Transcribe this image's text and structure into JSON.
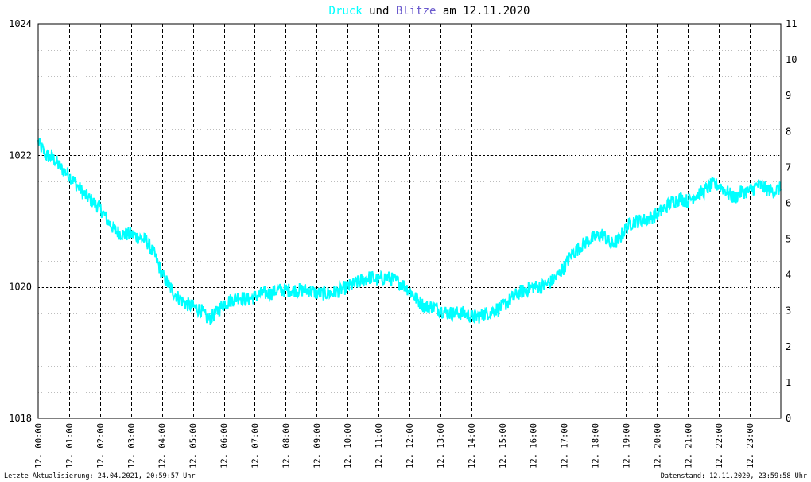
{
  "title": {
    "druck": "Druck",
    "und": "und",
    "blitze": "Blitze",
    "am_date": "am 12.11.2020"
  },
  "footer": {
    "left": "Letzte Aktualisierung: 24.04.2021, 20:59:57 Uhr",
    "right": "Datenstand: 12.11.2020, 23:59:58 Uhr"
  },
  "colors": {
    "druck": "#00ffff",
    "blitze": "#6a5acd",
    "text": "#000000",
    "grid": "#000000"
  },
  "chart_data": {
    "type": "line",
    "x_tick_labels": [
      "12. 00:00",
      "12. 01:00",
      "12. 02:00",
      "12. 03:00",
      "12. 04:00",
      "12. 05:00",
      "12. 06:00",
      "12. 07:00",
      "12. 08:00",
      "12. 09:00",
      "12. 10:00",
      "12. 11:00",
      "12. 12:00",
      "12. 13:00",
      "12. 14:00",
      "12. 15:00",
      "12. 16:00",
      "12. 17:00",
      "12. 18:00",
      "12. 19:00",
      "12. 20:00",
      "12. 21:00",
      "12. 22:00",
      "12. 23:00"
    ],
    "y_left": {
      "min": 1018,
      "max": 1024,
      "major_ticks": [
        1018,
        1020,
        1022,
        1024
      ],
      "minor_step": 0.4
    },
    "y_right": {
      "min": 0,
      "max": 11,
      "ticks": [
        0,
        1,
        2,
        3,
        4,
        5,
        6,
        7,
        8,
        9,
        10,
        11
      ]
    },
    "series": [
      {
        "name": "Druck",
        "axis": "left",
        "color": "#00ffff",
        "x_hours": [
          0,
          0.25,
          0.5,
          0.75,
          1,
          1.25,
          1.5,
          1.75,
          2,
          2.25,
          2.5,
          2.75,
          3,
          3.25,
          3.5,
          3.75,
          4,
          4.25,
          4.5,
          4.75,
          5,
          5.25,
          5.5,
          5.75,
          6,
          6.25,
          6.5,
          6.75,
          7,
          7.25,
          7.5,
          7.75,
          8,
          8.25,
          8.5,
          8.75,
          9,
          9.25,
          9.5,
          9.75,
          10,
          10.25,
          10.5,
          10.75,
          11,
          11.25,
          11.5,
          11.75,
          12,
          12.25,
          12.5,
          12.75,
          13,
          13.25,
          13.5,
          13.75,
          14,
          14.25,
          14.5,
          14.75,
          15,
          15.25,
          15.5,
          15.75,
          16,
          16.25,
          16.5,
          16.75,
          17,
          17.25,
          17.5,
          17.75,
          18,
          18.25,
          18.5,
          18.75,
          19,
          19.25,
          19.5,
          19.75,
          20,
          20.25,
          20.5,
          20.75,
          21,
          21.25,
          21.5,
          21.75,
          22,
          22.25,
          22.5,
          22.75,
          23,
          23.25,
          23.5,
          23.75,
          24
        ],
        "values": [
          1022.2,
          1022.0,
          1021.95,
          1021.8,
          1021.7,
          1021.55,
          1021.4,
          1021.3,
          1021.2,
          1021.0,
          1020.85,
          1020.8,
          1020.8,
          1020.75,
          1020.7,
          1020.5,
          1020.2,
          1020.0,
          1019.85,
          1019.75,
          1019.7,
          1019.65,
          1019.5,
          1019.6,
          1019.75,
          1019.8,
          1019.85,
          1019.8,
          1019.85,
          1019.9,
          1019.9,
          1019.95,
          1019.95,
          1019.95,
          1019.95,
          1019.95,
          1019.9,
          1019.9,
          1019.9,
          1019.95,
          1020.0,
          1020.05,
          1020.1,
          1020.15,
          1020.1,
          1020.15,
          1020.1,
          1020.05,
          1019.95,
          1019.8,
          1019.7,
          1019.7,
          1019.65,
          1019.6,
          1019.6,
          1019.6,
          1019.55,
          1019.55,
          1019.6,
          1019.65,
          1019.7,
          1019.8,
          1019.9,
          1019.95,
          1020.0,
          1020.0,
          1020.05,
          1020.15,
          1020.3,
          1020.5,
          1020.6,
          1020.7,
          1020.75,
          1020.8,
          1020.65,
          1020.7,
          1020.9,
          1021.0,
          1021.0,
          1021.05,
          1021.1,
          1021.2,
          1021.3,
          1021.35,
          1021.3,
          1021.4,
          1021.45,
          1021.55,
          1021.55,
          1021.45,
          1021.35,
          1021.45,
          1021.45,
          1021.55,
          1021.5,
          1021.45,
          1021.5
        ]
      }
    ]
  }
}
